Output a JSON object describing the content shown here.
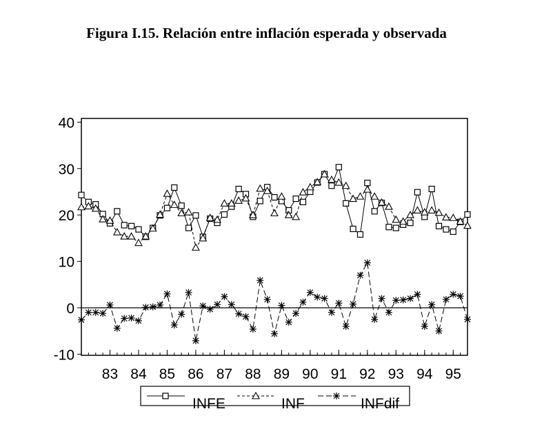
{
  "chart_data": {
    "type": "line",
    "title": "Figura I.15. Relación entre inflación esperada y observada",
    "xlabel": "",
    "ylabel": "",
    "ylim": [
      -10,
      40
    ],
    "yticks": [
      "40",
      "30",
      "20",
      "10",
      "0",
      "-10"
    ],
    "ytick_values": [
      40,
      30,
      20,
      10,
      0,
      -10
    ],
    "xticks": [
      "83",
      "84",
      "85",
      "86",
      "87",
      "88",
      "89",
      "90",
      "91",
      "92",
      "93",
      "94",
      "95"
    ],
    "x_start": "1982Q1",
    "frequency": "quarterly",
    "series": [
      {
        "name": "INFE",
        "marker": "square",
        "dash": "solid",
        "values": [
          24.3,
          22.8,
          22.3,
          20.2,
          18.2,
          20.8,
          17.8,
          17.6,
          16.9,
          15.3,
          17.2,
          19.9,
          21.5,
          25.9,
          22.0,
          17.2,
          19.9,
          15.3,
          19.2,
          18.3,
          20.1,
          21.8,
          25.6,
          24.5,
          19.6,
          23.0,
          26.0,
          23.8,
          23.0,
          21.0,
          23.5,
          22.8,
          25.0,
          27.0,
          28.8,
          26.3,
          30.3,
          22.5,
          17.0,
          15.8,
          26.9,
          20.8,
          22.6,
          17.4,
          17.2,
          17.9,
          18.3,
          24.9,
          19.6,
          25.6,
          17.6,
          16.9,
          16.4,
          18.5,
          20.1
        ]
      },
      {
        "name": "INF",
        "marker": "triangle",
        "dash": "short",
        "values": [
          21.7,
          21.9,
          21.4,
          19.1,
          18.8,
          16.3,
          15.4,
          15.4,
          14.0,
          15.4,
          17.1,
          20.1,
          24.6,
          22.2,
          20.4,
          20.6,
          13.0,
          15.0,
          19.4,
          19.0,
          22.5,
          22.5,
          23.1,
          23.6,
          20.0,
          25.7,
          25.2,
          20.4,
          24.0,
          20.0,
          19.6,
          24.9,
          26.0,
          27.1,
          28.8,
          27.6,
          27.0,
          26.3,
          23.5,
          24.0,
          25.5,
          24.0,
          22.7,
          21.8,
          19.0,
          18.6,
          20.0,
          21.0,
          20.6,
          21.0,
          20.5,
          19.5,
          19.4,
          18.6,
          17.7
        ]
      },
      {
        "name": "INFdif",
        "marker": "star",
        "dash": "long",
        "values": [
          -2.6,
          -1.0,
          -1.0,
          -1.2,
          0.6,
          -4.4,
          -2.3,
          -2.2,
          -2.8,
          0.1,
          0.2,
          0.6,
          3.0,
          -3.7,
          -1.4,
          3.3,
          -7.1,
          0.4,
          -0.3,
          0.7,
          2.4,
          0.7,
          -1.3,
          -1.9,
          -4.6,
          5.9,
          1.8,
          -5.6,
          0.5,
          -3.1,
          -1.2,
          1.2,
          3.3,
          2.3,
          2.0,
          -1.0,
          1.0,
          -4.0,
          0.8,
          7.0,
          9.7,
          -2.5,
          2.0,
          -1.0,
          1.6,
          1.7,
          2.0,
          2.9,
          -4.0,
          0.7,
          -5.0,
          1.8,
          2.9,
          2.5,
          -2.5
        ]
      }
    ],
    "zero_line": true,
    "grid": false,
    "legend_position": "bottom"
  }
}
